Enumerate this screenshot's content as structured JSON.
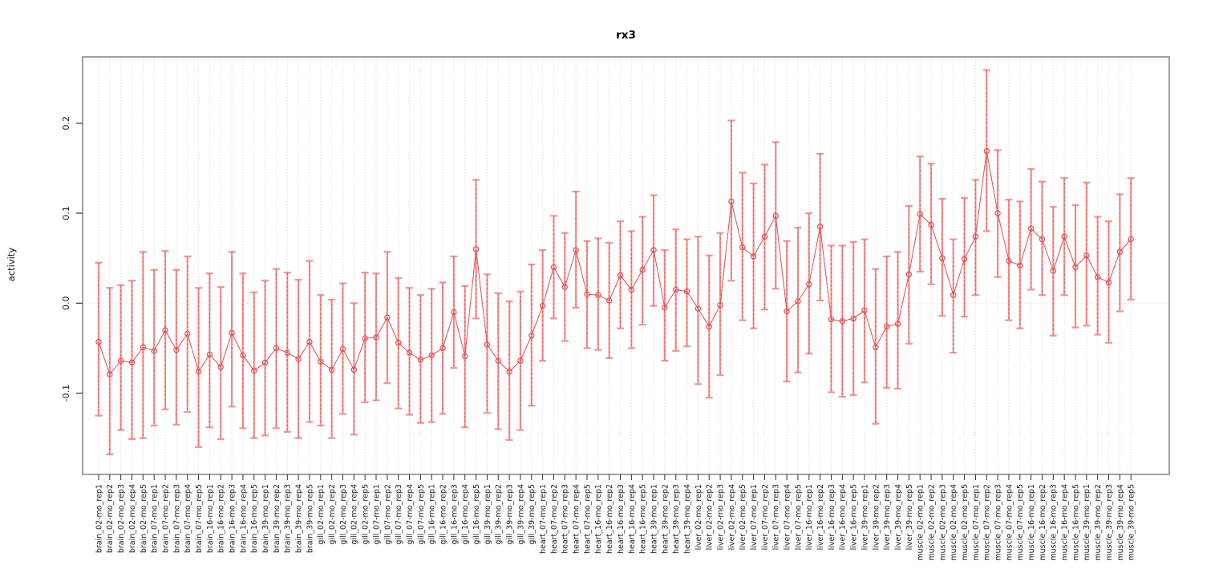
{
  "chart_data": {
    "type": "scatter",
    "title": "rx3",
    "xlabel": "",
    "ylabel": "activity",
    "legend": "none",
    "grid": "dotted vertical gridline per sample, dotted horizontal line at y=0",
    "y_tick_values": [
      -0.1,
      0.0,
      0.1,
      0.2
    ],
    "y_tick_labels": [
      "-0.1",
      "0.0",
      "0.1",
      "0.2"
    ],
    "ylim": [
      -0.19,
      0.274
    ],
    "marker": "open-circle with error bars, connected by line",
    "points": [
      {
        "label": "brain_02-mo_rep1",
        "mean": -0.043,
        "upper": 0.045,
        "lower": -0.125
      },
      {
        "label": "brain_02-mo_rep2",
        "mean": -0.079,
        "upper": 0.017,
        "lower": -0.168
      },
      {
        "label": "brain_02-mo_rep3",
        "mean": -0.064,
        "upper": 0.02,
        "lower": -0.141
      },
      {
        "label": "brain_02-mo_rep4",
        "mean": -0.066,
        "upper": 0.025,
        "lower": -0.151
      },
      {
        "label": "brain_02-mo_rep5",
        "mean": -0.049,
        "upper": 0.057,
        "lower": -0.15
      },
      {
        "label": "brain_07-mo_rep1",
        "mean": -0.053,
        "upper": 0.037,
        "lower": -0.136
      },
      {
        "label": "brain_07-mo_rep2",
        "mean": -0.03,
        "upper": 0.058,
        "lower": -0.118
      },
      {
        "label": "brain_07-mo_rep3",
        "mean": -0.052,
        "upper": 0.037,
        "lower": -0.135
      },
      {
        "label": "brain_07-mo_rep4",
        "mean": -0.034,
        "upper": 0.052,
        "lower": -0.121
      },
      {
        "label": "brain_07-mo_rep5",
        "mean": -0.076,
        "upper": 0.017,
        "lower": -0.16
      },
      {
        "label": "brain_16-mo_rep1",
        "mean": -0.057,
        "upper": 0.033,
        "lower": -0.138
      },
      {
        "label": "brain_16-mo_rep2",
        "mean": -0.071,
        "upper": 0.018,
        "lower": -0.151
      },
      {
        "label": "brain_16-mo_rep3",
        "mean": -0.033,
        "upper": 0.057,
        "lower": -0.115
      },
      {
        "label": "brain_16-mo_rep4",
        "mean": -0.058,
        "upper": 0.033,
        "lower": -0.139
      },
      {
        "label": "brain_16-mo_rep5",
        "mean": -0.075,
        "upper": 0.012,
        "lower": -0.15
      },
      {
        "label": "brain_39-mo_rep1",
        "mean": -0.066,
        "upper": 0.025,
        "lower": -0.147
      },
      {
        "label": "brain_39-mo_rep2",
        "mean": -0.05,
        "upper": 0.038,
        "lower": -0.139
      },
      {
        "label": "brain_39-mo_rep3",
        "mean": -0.055,
        "upper": 0.034,
        "lower": -0.143
      },
      {
        "label": "brain_39-mo_rep4",
        "mean": -0.062,
        "upper": 0.026,
        "lower": -0.15
      },
      {
        "label": "brain_39-mo_rep5",
        "mean": -0.043,
        "upper": 0.047,
        "lower": -0.132
      },
      {
        "label": "gill_02-mo_rep1",
        "mean": -0.065,
        "upper": 0.009,
        "lower": -0.136
      },
      {
        "label": "gill_02-mo_rep2",
        "mean": -0.074,
        "upper": 0.004,
        "lower": -0.15
      },
      {
        "label": "gill_02-mo_rep3",
        "mean": -0.051,
        "upper": 0.022,
        "lower": -0.123
      },
      {
        "label": "gill_02-mo_rep4",
        "mean": -0.074,
        "upper": 0.0,
        "lower": -0.146
      },
      {
        "label": "gill_02-mo_rep5",
        "mean": -0.039,
        "upper": 0.034,
        "lower": -0.11
      },
      {
        "label": "gill_07-mo_rep1",
        "mean": -0.038,
        "upper": 0.033,
        "lower": -0.108
      },
      {
        "label": "gill_07-mo_rep2",
        "mean": -0.016,
        "upper": 0.057,
        "lower": -0.089
      },
      {
        "label": "gill_07-mo_rep3",
        "mean": -0.044,
        "upper": 0.028,
        "lower": -0.117
      },
      {
        "label": "gill_07-mo_rep4",
        "mean": -0.055,
        "upper": 0.017,
        "lower": -0.124
      },
      {
        "label": "gill_07-mo_rep5",
        "mean": -0.063,
        "upper": 0.009,
        "lower": -0.133
      },
      {
        "label": "gill_16-mo_rep1",
        "mean": -0.058,
        "upper": 0.016,
        "lower": -0.132
      },
      {
        "label": "gill_16-mo_rep2",
        "mean": -0.05,
        "upper": 0.023,
        "lower": -0.123
      },
      {
        "label": "gill_16-mo_rep3",
        "mean": -0.01,
        "upper": 0.052,
        "lower": -0.072
      },
      {
        "label": "gill_16-mo_rep4",
        "mean": -0.059,
        "upper": 0.019,
        "lower": -0.138
      },
      {
        "label": "gill_16-mo_rep5",
        "mean": 0.06,
        "upper": 0.137,
        "lower": -0.017
      },
      {
        "label": "gill_39-mo_rep1",
        "mean": -0.046,
        "upper": 0.032,
        "lower": -0.122
      },
      {
        "label": "gill_39-mo_rep2",
        "mean": -0.064,
        "upper": 0.011,
        "lower": -0.14
      },
      {
        "label": "gill_39-mo_rep3",
        "mean": -0.076,
        "upper": 0.002,
        "lower": -0.152
      },
      {
        "label": "gill_39-mo_rep4",
        "mean": -0.064,
        "upper": 0.013,
        "lower": -0.141
      },
      {
        "label": "gill_39-mo_rep5",
        "mean": -0.036,
        "upper": 0.043,
        "lower": -0.114
      },
      {
        "label": "heart_07-mo_rep1",
        "mean": -0.003,
        "upper": 0.059,
        "lower": -0.064
      },
      {
        "label": "heart_07-mo_rep2",
        "mean": 0.04,
        "upper": 0.097,
        "lower": -0.017
      },
      {
        "label": "heart_07-mo_rep3",
        "mean": 0.018,
        "upper": 0.078,
        "lower": -0.042
      },
      {
        "label": "heart_07-mo_rep4",
        "mean": 0.059,
        "upper": 0.124,
        "lower": -0.005
      },
      {
        "label": "heart_07-mo_rep5",
        "mean": 0.01,
        "upper": 0.069,
        "lower": -0.05
      },
      {
        "label": "heart_16-mo_rep1",
        "mean": 0.009,
        "upper": 0.072,
        "lower": -0.052
      },
      {
        "label": "heart_16-mo_rep2",
        "mean": 0.003,
        "upper": 0.067,
        "lower": -0.061
      },
      {
        "label": "heart_16-mo_rep3",
        "mean": 0.031,
        "upper": 0.091,
        "lower": -0.028
      },
      {
        "label": "heart_16-mo_rep4",
        "mean": 0.015,
        "upper": 0.08,
        "lower": -0.05
      },
      {
        "label": "heart_16-mo_rep5",
        "mean": 0.037,
        "upper": 0.096,
        "lower": -0.024
      },
      {
        "label": "heart_39-mo_rep1",
        "mean": 0.059,
        "upper": 0.12,
        "lower": -0.003
      },
      {
        "label": "heart_39-mo_rep2",
        "mean": -0.005,
        "upper": 0.059,
        "lower": -0.064
      },
      {
        "label": "heart_39-mo_rep3",
        "mean": 0.015,
        "upper": 0.082,
        "lower": -0.053
      },
      {
        "label": "heart_39-mo_rep4",
        "mean": 0.013,
        "upper": 0.071,
        "lower": -0.048
      },
      {
        "label": "liver_02-mo_rep1",
        "mean": -0.006,
        "upper": 0.074,
        "lower": -0.09
      },
      {
        "label": "liver_02-mo_rep2",
        "mean": -0.026,
        "upper": 0.053,
        "lower": -0.105
      },
      {
        "label": "liver_02-mo_rep3",
        "mean": -0.002,
        "upper": 0.078,
        "lower": -0.08
      },
      {
        "label": "liver_02-mo_rep4",
        "mean": 0.113,
        "upper": 0.203,
        "lower": 0.025
      },
      {
        "label": "liver_02-mo_rep5",
        "mean": 0.062,
        "upper": 0.145,
        "lower": -0.019
      },
      {
        "label": "liver_07-mo_rep1",
        "mean": 0.052,
        "upper": 0.133,
        "lower": -0.028
      },
      {
        "label": "liver_07-mo_rep2",
        "mean": 0.074,
        "upper": 0.154,
        "lower": -0.007
      },
      {
        "label": "liver_07-mo_rep3",
        "mean": 0.097,
        "upper": 0.179,
        "lower": 0.016
      },
      {
        "label": "liver_07-mo_rep4",
        "mean": -0.009,
        "upper": 0.069,
        "lower": -0.087
      },
      {
        "label": "liver_07-mo_rep5",
        "mean": 0.002,
        "upper": 0.084,
        "lower": -0.077
      },
      {
        "label": "liver_16-mo_rep1",
        "mean": 0.021,
        "upper": 0.1,
        "lower": -0.056
      },
      {
        "label": "liver_16-mo_rep2",
        "mean": 0.085,
        "upper": 0.166,
        "lower": 0.003
      },
      {
        "label": "liver_16-mo_rep3",
        "mean": -0.018,
        "upper": 0.064,
        "lower": -0.099
      },
      {
        "label": "liver_16-mo_rep4",
        "mean": -0.02,
        "upper": 0.064,
        "lower": -0.104
      },
      {
        "label": "liver_16-mo_rep5",
        "mean": -0.017,
        "upper": 0.068,
        "lower": -0.102
      },
      {
        "label": "liver_39-mo_rep1",
        "mean": -0.008,
        "upper": 0.071,
        "lower": -0.088
      },
      {
        "label": "liver_39-mo_rep2",
        "mean": -0.049,
        "upper": 0.038,
        "lower": -0.134
      },
      {
        "label": "liver_39-mo_rep3",
        "mean": -0.026,
        "upper": 0.052,
        "lower": -0.094
      },
      {
        "label": "liver_39-mo_rep4",
        "mean": -0.023,
        "upper": 0.057,
        "lower": -0.095
      },
      {
        "label": "liver_39-mo_rep5",
        "mean": 0.032,
        "upper": 0.108,
        "lower": -0.045
      },
      {
        "label": "muscle_02-mo_rep1",
        "mean": 0.099,
        "upper": 0.163,
        "lower": 0.035
      },
      {
        "label": "muscle_02-mo_rep2",
        "mean": 0.087,
        "upper": 0.155,
        "lower": 0.021
      },
      {
        "label": "muscle_02-mo_rep3",
        "mean": 0.05,
        "upper": 0.116,
        "lower": -0.014
      },
      {
        "label": "muscle_02-mo_rep4",
        "mean": 0.009,
        "upper": 0.071,
        "lower": -0.055
      },
      {
        "label": "muscle_02-mo_rep5",
        "mean": 0.049,
        "upper": 0.117,
        "lower": -0.015
      },
      {
        "label": "muscle_07-mo_rep1",
        "mean": 0.074,
        "upper": 0.137,
        "lower": 0.009
      },
      {
        "label": "muscle_07-mo_rep2",
        "mean": 0.169,
        "upper": 0.259,
        "lower": 0.08
      },
      {
        "label": "muscle_07-mo_rep3",
        "mean": 0.1,
        "upper": 0.17,
        "lower": 0.029
      },
      {
        "label": "muscle_07-mo_rep4",
        "mean": 0.047,
        "upper": 0.115,
        "lower": -0.019
      },
      {
        "label": "muscle_07-mo_rep5",
        "mean": 0.042,
        "upper": 0.113,
        "lower": -0.028
      },
      {
        "label": "muscle_16-mo_rep1",
        "mean": 0.083,
        "upper": 0.149,
        "lower": 0.015
      },
      {
        "label": "muscle_16-mo_rep2",
        "mean": 0.071,
        "upper": 0.135,
        "lower": 0.009
      },
      {
        "label": "muscle_16-mo_rep3",
        "mean": 0.036,
        "upper": 0.107,
        "lower": -0.036
      },
      {
        "label": "muscle_16-mo_rep4",
        "mean": 0.074,
        "upper": 0.139,
        "lower": 0.009
      },
      {
        "label": "muscle_16-mo_rep5",
        "mean": 0.04,
        "upper": 0.109,
        "lower": -0.027
      },
      {
        "label": "muscle_39-mo_rep1",
        "mean": 0.053,
        "upper": 0.134,
        "lower": -0.025
      },
      {
        "label": "muscle_39-mo_rep2",
        "mean": 0.029,
        "upper": 0.096,
        "lower": -0.035
      },
      {
        "label": "muscle_39-mo_rep3",
        "mean": 0.023,
        "upper": 0.091,
        "lower": -0.044
      },
      {
        "label": "muscle_39-mo_rep4",
        "mean": 0.057,
        "upper": 0.121,
        "lower": -0.009
      },
      {
        "label": "muscle_39-mo_rep5",
        "mean": 0.071,
        "upper": 0.139,
        "lower": 0.004
      }
    ],
    "colors": {
      "error_bar": "#f69494",
      "point_line": "#e74c4c",
      "gridline": "#d6d6d6",
      "box_border": "#8a8a8a",
      "tick": "#2f2f2f",
      "tick_label": "#1d1d1d",
      "background": "#ffffff"
    }
  }
}
